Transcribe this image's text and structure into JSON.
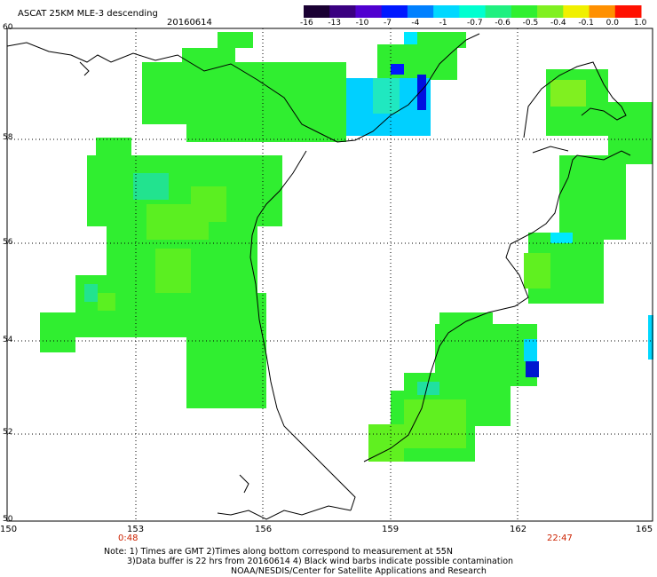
{
  "title": "ASCAT 25KM MLE-3 descending",
  "date": "20160614",
  "colorbar": {
    "labels": [
      "-16",
      "-13",
      "-10",
      "-7",
      "-4",
      "-1",
      "-0.7",
      "-0.6",
      "-0.5",
      "-0.4",
      "-0.1",
      "0.0",
      "1.0"
    ],
    "colors": [
      "#1a0033",
      "#3a0080",
      "#5000d0",
      "#0018ff",
      "#0080ff",
      "#00d8ff",
      "#00ffd0",
      "#20f080",
      "#30f030",
      "#80f020",
      "#f0f000",
      "#ff9000",
      "#ff1000"
    ]
  },
  "map": {
    "lat_labels": [
      "60",
      "58",
      "56",
      "54",
      "52",
      "50"
    ],
    "lon_labels": [
      "150",
      "153",
      "156",
      "159",
      "162",
      "165"
    ],
    "lat_range": [
      50,
      60
    ],
    "lon_range": [
      150,
      165
    ],
    "grid": "dotted"
  },
  "time_labels": {
    "start": "0:48",
    "end": "22:47"
  },
  "notes": {
    "line1": "Note: 1) Times are GMT 2)Times along bottom correspond to measurement at 55N",
    "line2": "3)Data buffer is 22 hrs from 20160614 4) Black wind barbs indicate possible contamination",
    "line3": "NOAA/NESDIS/Center for Satellite Applications and Research"
  }
}
